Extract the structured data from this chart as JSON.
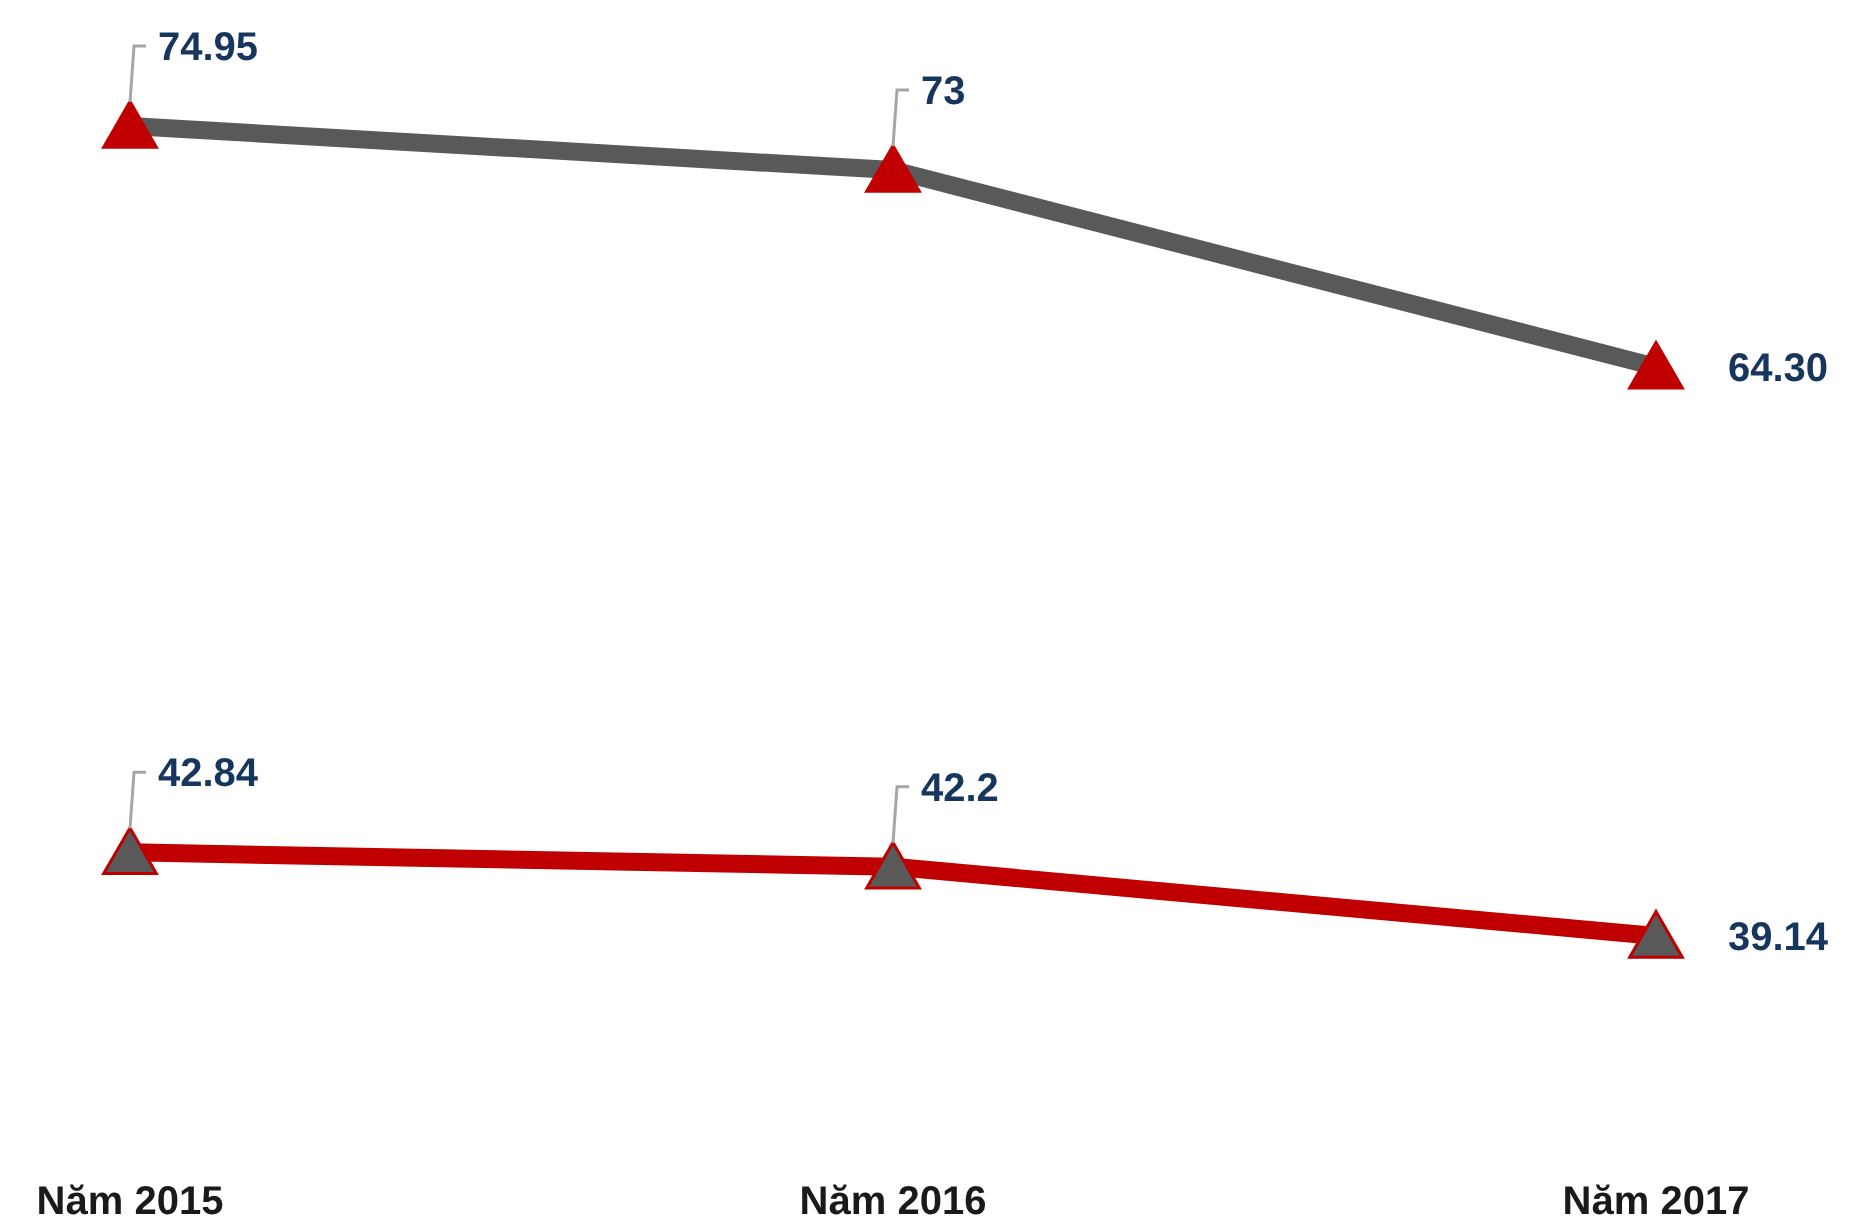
{
  "chart_data": {
    "type": "line",
    "categories": [
      "Năm 2015",
      "Năm 2016",
      "Năm 2017"
    ],
    "series": [
      {
        "color": "#595959",
        "values": [
          74.95,
          73,
          64.3
        ],
        "value_labels": [
          "74.95",
          "73",
          "64.30"
        ]
      },
      {
        "color": "#c00000",
        "values": [
          42.84,
          42.2,
          39.14
        ],
        "value_labels": [
          "42.84",
          "42.2",
          "39.14"
        ]
      }
    ],
    "marker": "triangle",
    "line_style": "solid"
  }
}
